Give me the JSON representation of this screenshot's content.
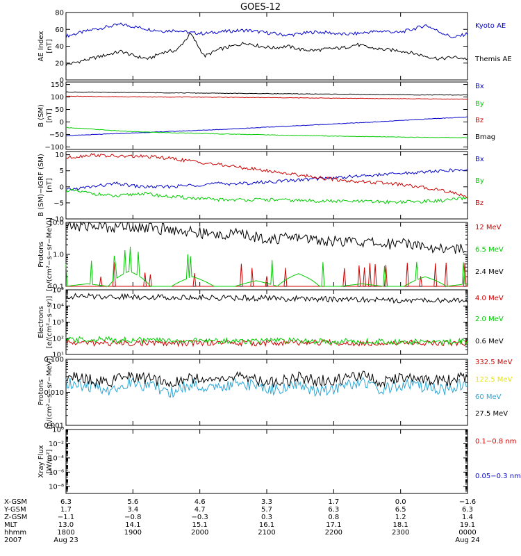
{
  "title": "GOES-12",
  "chart_data": [
    {
      "type": "line",
      "panel": "ae",
      "ylabel": "AE Index",
      "yunit": "[nT]",
      "yscale": "linear",
      "ylim": [
        0,
        80
      ],
      "yticks": [
        0,
        20,
        40,
        60,
        80
      ],
      "yticklabels": [
        "0",
        "20",
        "40",
        "60",
        "80"
      ],
      "series": [
        {
          "name": "Kyoto AE",
          "color": "#0000cc",
          "values": [
            52,
            56,
            60,
            63,
            66,
            63,
            60,
            58,
            59,
            56,
            55,
            57,
            58,
            59,
            57,
            55,
            53,
            55,
            57,
            56,
            54,
            55,
            57,
            58,
            56,
            60,
            65,
            57,
            50,
            55
          ]
        },
        {
          "name": "Themis AE",
          "color": "#000000",
          "values": [
            18,
            22,
            26,
            30,
            34,
            28,
            25,
            33,
            35,
            55,
            28,
            36,
            40,
            44,
            40,
            38,
            40,
            36,
            35,
            37,
            38,
            42,
            38,
            36,
            35,
            32,
            28,
            25,
            27,
            25
          ]
        }
      ]
    },
    {
      "type": "line",
      "panel": "bsm",
      "ylabel": "B (SM)",
      "yunit": "[nT]",
      "yscale": "linear",
      "ylim": [
        -110,
        160
      ],
      "yticks": [
        -100,
        -50,
        0,
        50,
        100,
        150
      ],
      "yticklabels": [
        "−100",
        "−50",
        "0",
        "50",
        "100",
        "150"
      ],
      "series": [
        {
          "name": "Bx",
          "color": "#0000cc",
          "values": [
            -55,
            -50,
            -45,
            -40,
            -35,
            -30,
            -24,
            -18,
            -12,
            -6,
            0,
            7,
            14,
            20
          ]
        },
        {
          "name": "By",
          "color": "#00cc00",
          "values": [
            -22,
            -30,
            -38,
            -42,
            -45,
            -48,
            -50,
            -53,
            -55,
            -57,
            -59,
            -61,
            -62,
            -63
          ]
        },
        {
          "name": "Bz",
          "color": "#cc0000",
          "values": [
            103,
            102,
            101,
            100,
            100,
            99,
            98,
            97,
            96,
            95,
            94,
            93,
            92,
            91
          ]
        },
        {
          "name": "Bmag",
          "color": "#000000",
          "values": [
            120,
            119,
            118,
            117,
            116,
            115,
            114,
            113,
            112,
            111,
            110,
            109,
            108,
            108
          ]
        }
      ]
    },
    {
      "type": "line",
      "panel": "bsm_igrf",
      "ylabel": "B (SM)−IGRF (SM)",
      "yunit": "[nT]",
      "yscale": "linear",
      "ylim": [
        -10,
        11
      ],
      "yticks": [
        -10,
        -5,
        0,
        5,
        10
      ],
      "yticklabels": [
        "−10",
        "−5",
        "0",
        "5",
        "10"
      ],
      "series": [
        {
          "name": "Bx",
          "color": "#0000cc",
          "values": [
            -1,
            0,
            1,
            0,
            0,
            0.5,
            1,
            1,
            1.5,
            2,
            2.5,
            3,
            3.5,
            4,
            4.5,
            5,
            5.3
          ]
        },
        {
          "name": "By",
          "color": "#00cc00",
          "values": [
            -1,
            -2,
            -3,
            -2,
            -3,
            -3.5,
            -4,
            -4,
            -4,
            -4.2,
            -4.4,
            -4.5,
            -4.6,
            -4.7,
            -4.6,
            -4.3,
            -3.5
          ]
        },
        {
          "name": "Bz",
          "color": "#cc0000",
          "values": [
            9,
            10,
            9.5,
            9.5,
            9,
            8,
            7,
            6,
            5,
            4,
            3,
            2,
            1.5,
            1,
            0,
            -1,
            -3
          ]
        }
      ]
    },
    {
      "type": "line",
      "panel": "protons_low",
      "ylabel": "Protons",
      "yunit": "[p/(cm²−s−sr−MeV)]",
      "yscale": "log",
      "ylim": [
        0.1,
        10
      ],
      "yticks": [
        0.1,
        1,
        10
      ],
      "yticklabels": [
        "0.1",
        "1.0",
        "10.0"
      ],
      "series": [
        {
          "name": "12 MeV",
          "color": "#cc0000",
          "values": [
            0.1,
            0.1,
            0.1,
            0.1,
            0.1,
            0.1,
            0.1,
            0.1,
            0.1,
            0.1,
            0.1,
            0.1,
            0.1,
            0.1,
            0.1,
            0.1,
            0.1,
            0.1,
            0.1,
            0.1
          ]
        },
        {
          "name": "6.5 MeV",
          "color": "#00cc00",
          "values": [
            0.1,
            0.12,
            0.1,
            0.3,
            0.1,
            0.1,
            0.2,
            0.1,
            0.1,
            0.15,
            0.1,
            0.25,
            0.1,
            0.1,
            0.12,
            0.1,
            0.1,
            0.2,
            0.1,
            0.12
          ]
        },
        {
          "name": "2.4 MeV",
          "color": "#000000",
          "values": [
            7.5,
            8,
            7,
            8,
            6.5,
            6,
            5,
            4,
            4.5,
            3.5,
            3,
            3.5,
            2.8,
            2.5,
            2.5,
            2,
            2.5,
            1.8,
            1.5,
            1.5
          ]
        }
      ]
    },
    {
      "type": "line",
      "panel": "electrons",
      "ylabel": "Electrons",
      "yunit": "[e/(cm²−s−sr)]",
      "yscale": "log",
      "ylim": [
        10,
        100000
      ],
      "yticks": [
        10,
        100,
        1000,
        10000,
        100000
      ],
      "yticklabels": [
        "10¹",
        "10²",
        "10³",
        "10⁴",
        "10⁵"
      ],
      "series": [
        {
          "name": "4.0 MeV",
          "color": "#cc0000",
          "values": [
            55,
            50,
            52,
            48,
            55,
            50,
            52,
            55,
            50,
            55,
            52,
            50
          ]
        },
        {
          "name": "2.0 MeV",
          "color": "#00cc00",
          "values": [
            80,
            85,
            78,
            72,
            70,
            68,
            70,
            65,
            65,
            62,
            60,
            62
          ]
        },
        {
          "name": "0.6 MeV",
          "color": "#000000",
          "values": [
            40000,
            39000,
            37000,
            35000,
            33000,
            31000,
            29000,
            27000,
            25000,
            23000,
            22000,
            21000
          ]
        }
      ]
    },
    {
      "type": "line",
      "panel": "protons_high",
      "ylabel": "Protons",
      "yunit": "[p/(cm²−s−sr−MeV)]",
      "yscale": "log",
      "ylim": [
        0.001,
        0.1
      ],
      "yticks": [
        0.001,
        0.01,
        0.1
      ],
      "yticklabels": [
        "0.001",
        "0.010",
        "0.100"
      ],
      "series": [
        {
          "name": "332.5 MeV",
          "color": "#cc0000",
          "values": []
        },
        {
          "name": "122.5 MeV",
          "color": "#e6e600",
          "values": []
        },
        {
          "name": "60 MeV",
          "color": "#2aa6d6",
          "values": [
            0.02,
            0.015,
            0.012,
            0.02,
            0.015,
            0.01,
            0.018,
            0.012,
            0.02,
            0.015,
            0.012,
            0.018,
            0.01,
            0.015,
            0.02,
            0.012,
            0.018,
            0.015,
            0.012,
            0.02
          ]
        },
        {
          "name": "27.5 MeV",
          "color": "#000000",
          "values": [
            0.03,
            0.025,
            0.02,
            0.03,
            0.025,
            0.02,
            0.028,
            0.022,
            0.03,
            0.025,
            0.02,
            0.028,
            0.022,
            0.025,
            0.03,
            0.02,
            0.028,
            0.025,
            0.022,
            0.03
          ]
        }
      ]
    },
    {
      "type": "line",
      "panel": "xray",
      "ylabel": "Xray Flux",
      "yunit": "[W/m²]",
      "yscale": "log",
      "ylim": [
        1e-09,
        1
      ],
      "yticks": [
        1e-08,
        1e-06,
        0.0001,
        0.01,
        1
      ],
      "yticklabels": [
        "10⁻⁸",
        "10⁻⁶",
        "10⁻⁴",
        "10⁻²",
        "10⁰"
      ],
      "series": [
        {
          "name": "0.1−0.8 nm",
          "color": "#cc0000",
          "values": []
        },
        {
          "name": "0.05−0.3 nm",
          "color": "#0000cc",
          "values": []
        }
      ]
    }
  ],
  "xaxis": {
    "row_labels": [
      "X-GSM",
      "Y-GSM",
      "Z-GSM",
      "MLT",
      "hhmm",
      "2007"
    ],
    "ticks": [
      {
        "x_gsm": "6.3",
        "y_gsm": "1.7",
        "z_gsm": "−1.1",
        "mlt": "13.0",
        "hhmm": "1800",
        "date": "Aug 23"
      },
      {
        "x_gsm": "5.6",
        "y_gsm": "3.4",
        "z_gsm": "−0.8",
        "mlt": "14.1",
        "hhmm": "1900",
        "date": ""
      },
      {
        "x_gsm": "4.6",
        "y_gsm": "4.7",
        "z_gsm": "−0.3",
        "mlt": "15.1",
        "hhmm": "2000",
        "date": ""
      },
      {
        "x_gsm": "3.3",
        "y_gsm": "5.7",
        "z_gsm": "0.3",
        "mlt": "16.1",
        "hhmm": "2100",
        "date": ""
      },
      {
        "x_gsm": "1.7",
        "y_gsm": "6.3",
        "z_gsm": "0.8",
        "mlt": "17.1",
        "hhmm": "2200",
        "date": ""
      },
      {
        "x_gsm": "0.0",
        "y_gsm": "6.5",
        "z_gsm": "1.2",
        "mlt": "18.1",
        "hhmm": "2300",
        "date": ""
      },
      {
        "x_gsm": "−1.6",
        "y_gsm": "6.3",
        "z_gsm": "1.4",
        "mlt": "19.1",
        "hhmm": "0000",
        "date": "Aug 24"
      }
    ]
  }
}
